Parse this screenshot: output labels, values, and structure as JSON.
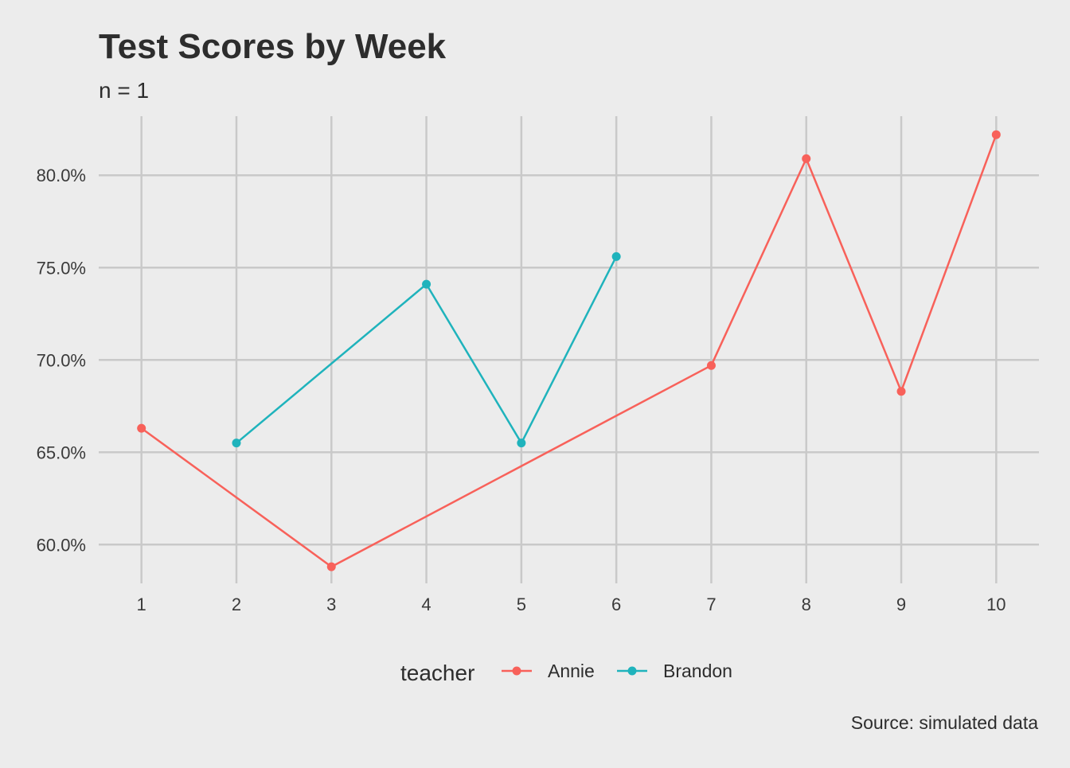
{
  "chart_data": {
    "type": "line",
    "title": "Test Scores by Week",
    "subtitle": "n = 1",
    "caption": "Source: simulated data",
    "xlabel": "",
    "ylabel": "",
    "x_ticks": [
      1,
      2,
      3,
      4,
      5,
      6,
      7,
      8,
      9,
      10
    ],
    "y_ticks": [
      60,
      65,
      70,
      75,
      80
    ],
    "y_tick_labels": [
      "60.0%",
      "65.0%",
      "70.0%",
      "75.0%",
      "80.0%"
    ],
    "xlim": [
      0.55,
      10.45
    ],
    "ylim": [
      57.9,
      83.2
    ],
    "grid": true,
    "legend": {
      "title": "teacher",
      "placement": "bottom"
    },
    "series": [
      {
        "name": "Annie",
        "color": "#f8615a",
        "points": [
          {
            "x": 1,
            "y": 66.3
          },
          {
            "x": 3,
            "y": 58.8
          },
          {
            "x": 7,
            "y": 69.7
          },
          {
            "x": 8,
            "y": 80.9
          },
          {
            "x": 9,
            "y": 68.3
          },
          {
            "x": 10,
            "y": 82.2
          }
        ]
      },
      {
        "name": "Brandon",
        "color": "#1fb3bc",
        "points": [
          {
            "x": 2,
            "y": 65.5
          },
          {
            "x": 4,
            "y": 74.1
          },
          {
            "x": 5,
            "y": 65.5
          },
          {
            "x": 6,
            "y": 75.6
          }
        ]
      }
    ]
  }
}
